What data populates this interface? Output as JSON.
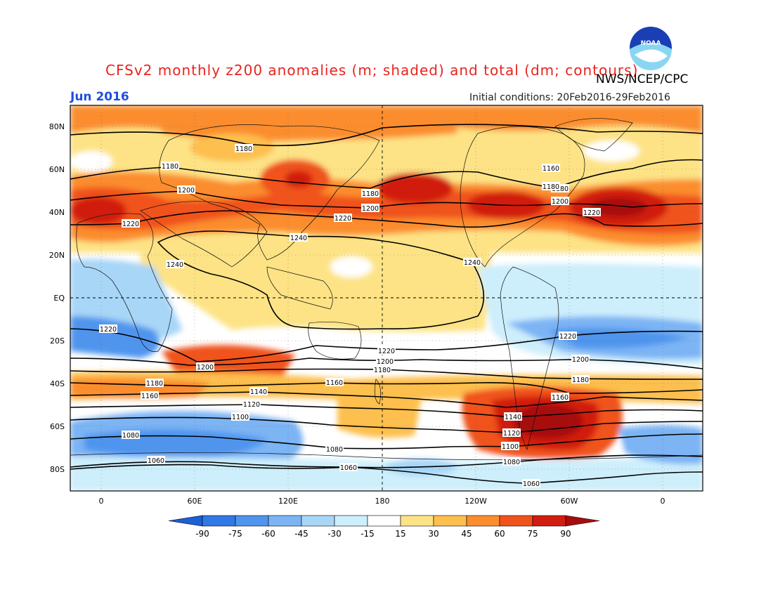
{
  "header": {
    "title": "CFSv2 monthly z200 anomalies (m; shaded) and total (dm; contours)",
    "agency": "NWS/NCEP/CPC",
    "month": "Jun 2016",
    "initial_conditions": "Initial conditions: 20Feb2016-29Feb2016",
    "logo_text": "NOAA"
  },
  "axes": {
    "lat_labels": [
      "80N",
      "60N",
      "40N",
      "20N",
      "EQ",
      "20S",
      "40S",
      "60S",
      "80S"
    ],
    "lon_labels": [
      "0",
      "60E",
      "120E",
      "180",
      "120W",
      "60W",
      "0"
    ]
  },
  "colorbar": {
    "ticks": [
      "-90",
      "-75",
      "-60",
      "-45",
      "-30",
      "-15",
      "15",
      "30",
      "45",
      "60",
      "75",
      "90"
    ],
    "colors": [
      "#1c5fd8",
      "#2f78e6",
      "#4f95ee",
      "#7cb4f4",
      "#a8d6f7",
      "#cdeefb",
      "#ffffff",
      "#fde385",
      "#fdbf4d",
      "#fb8d2f",
      "#f0521c",
      "#d11c10",
      "#a80c0c"
    ]
  },
  "contour_labels": [
    "1180",
    "1180",
    "1200",
    "1220",
    "1240",
    "1240",
    "1180",
    "1200",
    "1220",
    "1240",
    "1180",
    "1200",
    "1220",
    "1160",
    "1180",
    "1200",
    "1220",
    "1220",
    "1200",
    "1180",
    "1160",
    "1200",
    "1180",
    "1160",
    "1140",
    "1120",
    "1100",
    "1080",
    "1060",
    "1060",
    "1080",
    "1100",
    "1120",
    "1140",
    "1160",
    "1180",
    "1200",
    "1220",
    "1060",
    "1080",
    "1080"
  ]
}
